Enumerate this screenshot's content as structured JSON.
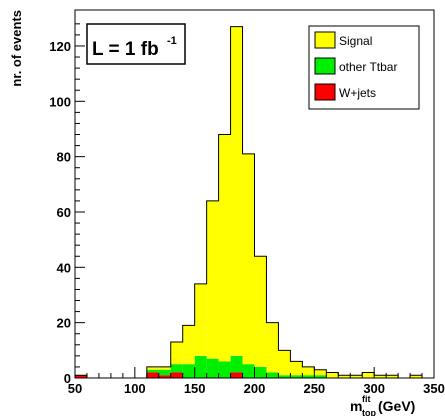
{
  "chart_data": {
    "type": "bar",
    "stacked": true,
    "histogram": true,
    "x_bin_edges": [
      50,
      60,
      70,
      80,
      90,
      100,
      110,
      120,
      130,
      140,
      150,
      160,
      170,
      180,
      190,
      200,
      210,
      220,
      230,
      240,
      250,
      260,
      270,
      280,
      290,
      300,
      310,
      320,
      330,
      340,
      350
    ],
    "series": [
      {
        "name": "W+jets",
        "color": "#ff0000",
        "values": [
          1,
          0,
          0,
          0,
          0,
          0,
          2,
          1,
          2,
          0,
          0,
          0,
          0,
          2,
          0,
          0,
          0,
          0,
          0,
          0,
          0,
          0,
          0,
          0,
          0,
          0,
          0,
          0,
          0,
          0
        ]
      },
      {
        "name": "other Ttbar",
        "color": "#00ee00",
        "values": [
          0,
          0,
          0,
          0,
          0,
          0,
          1,
          2,
          3,
          5,
          8,
          7,
          6,
          6,
          5,
          4,
          2,
          1,
          1,
          1,
          1,
          0,
          0,
          0,
          0,
          0,
          0,
          0,
          0,
          0
        ]
      },
      {
        "name": "Signal",
        "color": "#ffff00",
        "values": [
          0,
          0,
          0,
          0,
          0,
          0,
          1,
          1,
          8,
          14,
          26,
          57,
          82,
          119,
          76,
          40,
          18,
          9,
          5,
          3,
          2,
          2,
          1,
          1,
          2,
          1,
          1,
          0,
          1,
          0
        ]
      }
    ],
    "xlim": [
      50,
      350
    ],
    "ylim": [
      0,
      133
    ],
    "x_ticks": [
      "50",
      "100",
      "150",
      "200",
      "250",
      "300",
      "350"
    ],
    "y_ticks": [
      "0",
      "20",
      "40",
      "60",
      "80",
      "100",
      "120"
    ],
    "ylabel": "nr. of events",
    "xlabel": {
      "main": "m",
      "sup": "fit",
      "sub": "top",
      "unit": " (GeV)"
    },
    "annotation": {
      "main": "L = 1 fb",
      "sup": "-1"
    },
    "legend_order": [
      "Signal",
      "other Ttbar",
      "W+jets"
    ],
    "legend_position": "top-right",
    "grid": false,
    "fill_colors": {
      "Signal": "#ffff00",
      "other Ttbar": "#00ee00",
      "W+jets": "#ff0000"
    }
  }
}
